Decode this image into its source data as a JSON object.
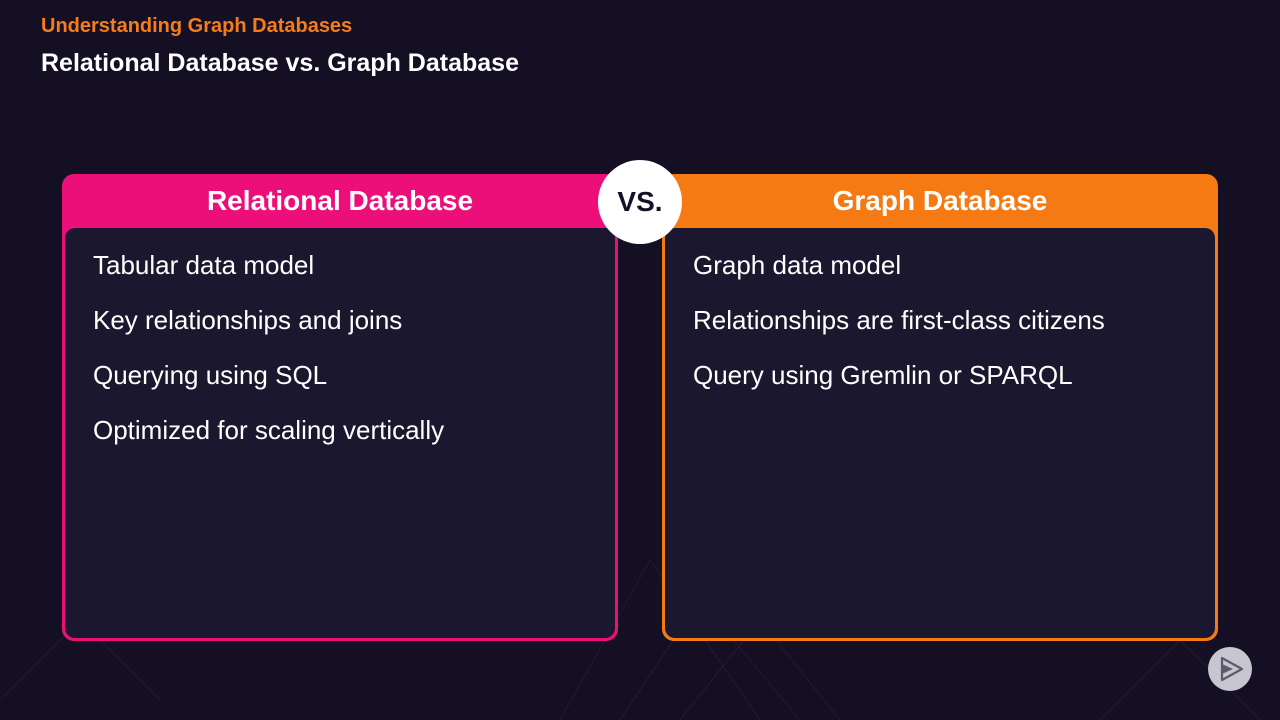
{
  "header": {
    "kicker": "Understanding Graph Databases",
    "title": "Relational Database vs. Graph Database"
  },
  "vs_label": "VS.",
  "left_panel": {
    "title": "Relational Database",
    "items": [
      "Tabular data model",
      "Key relationships and joins",
      "Querying using SQL",
      "Optimized for scaling vertically"
    ]
  },
  "right_panel": {
    "title": "Graph Database",
    "items": [
      "Graph data model",
      "Relationships are first-class citizens",
      "Query using Gremlin or SPARQL"
    ]
  },
  "colors": {
    "background": "#140f22",
    "left_accent": "#ec0f7a",
    "right_accent": "#f57a14",
    "kicker": "#f47c1e",
    "panel_body": "#1b172f"
  },
  "icons": {
    "player_logo": "play-triangle-icon"
  }
}
